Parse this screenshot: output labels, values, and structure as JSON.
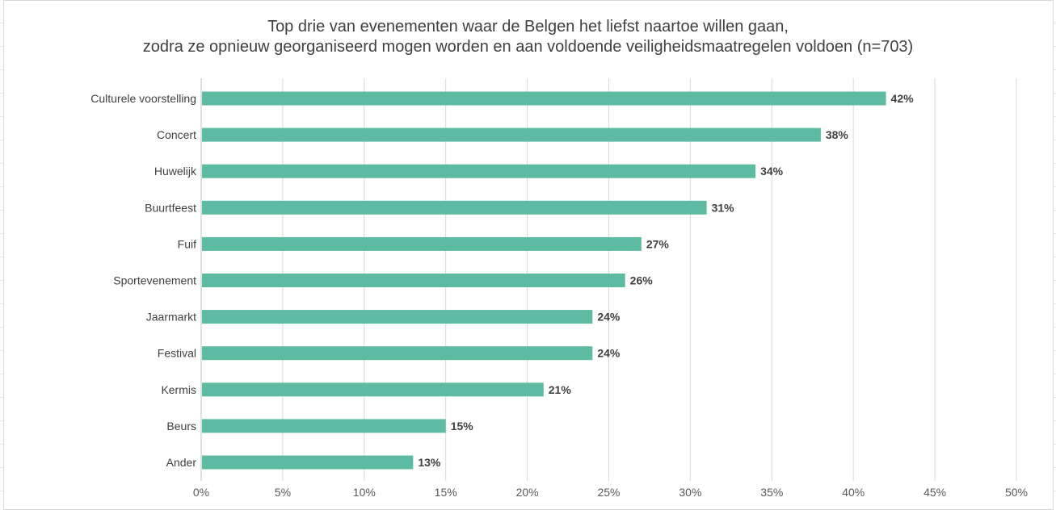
{
  "chart_data": {
    "type": "bar",
    "orientation": "horizontal",
    "title_line1": "Top drie van evenementen waar de Belgen het liefst naartoe willen gaan,",
    "title_line2": "zodra ze opnieuw georganiseerd mogen worden en aan voldoende veiligheidsmaatregelen voldoen (n=703)",
    "categories": [
      "Culturele voorstelling",
      "Concert",
      "Huwelijk",
      "Buurtfeest",
      "Fuif",
      "Sportevenement",
      "Jaarmarkt",
      "Festival",
      "Kermis",
      "Beurs",
      "Ander"
    ],
    "values": [
      42,
      38,
      34,
      31,
      27,
      26,
      24,
      24,
      21,
      15,
      13
    ],
    "data_labels": [
      "42%",
      "38%",
      "34%",
      "31%",
      "27%",
      "26%",
      "24%",
      "24%",
      "21%",
      "15%",
      "13%"
    ],
    "xlim": [
      0,
      50
    ],
    "x_ticks": [
      "0%",
      "5%",
      "10%",
      "15%",
      "20%",
      "25%",
      "30%",
      "35%",
      "40%",
      "45%",
      "50%"
    ],
    "bar_color": "#5cbba0",
    "grid": "vertical",
    "legend": "none"
  }
}
